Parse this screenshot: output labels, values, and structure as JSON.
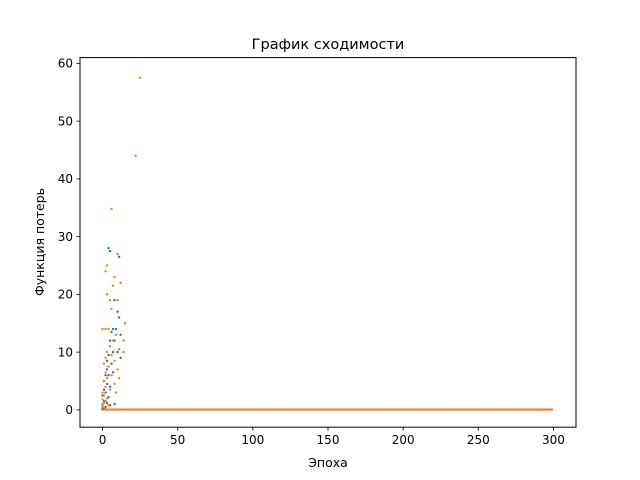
{
  "chart_data": {
    "type": "scatter",
    "title": "График сходимости",
    "xlabel": "Эпоха",
    "ylabel": "Функция потерь",
    "xlim": [
      -15,
      315
    ],
    "ylim": [
      -3,
      61
    ],
    "xticks": [
      0,
      50,
      100,
      150,
      200,
      250,
      300
    ],
    "yticks": [
      0,
      10,
      20,
      30,
      40,
      50,
      60
    ],
    "grid": false,
    "legend": "none",
    "series": [
      {
        "color": "#1f77b4",
        "points": [
          [
            4,
            28
          ],
          [
            5,
            27.5
          ],
          [
            11,
            26.5
          ],
          [
            8,
            19
          ],
          [
            10,
            17
          ],
          [
            11,
            16
          ],
          [
            12,
            13
          ],
          [
            9,
            14
          ],
          [
            7,
            14
          ],
          [
            6,
            13.5
          ],
          [
            5,
            12
          ],
          [
            8,
            12
          ],
          [
            10,
            10
          ],
          [
            7,
            10
          ],
          [
            4,
            9.5
          ],
          [
            3,
            8.5
          ],
          [
            6,
            8
          ],
          [
            12,
            9
          ],
          [
            3,
            7
          ],
          [
            2,
            6
          ],
          [
            4,
            6
          ],
          [
            7,
            6.5
          ],
          [
            1,
            5
          ],
          [
            3,
            4.5
          ],
          [
            5,
            4
          ],
          [
            1,
            3.5
          ],
          [
            2,
            3
          ],
          [
            0,
            2.5
          ],
          [
            4,
            2.2
          ],
          [
            1,
            1.5
          ],
          [
            0,
            1
          ],
          [
            3,
            1.2
          ],
          [
            0,
            0.6
          ],
          [
            2,
            0.5
          ],
          [
            1,
            0.3
          ],
          [
            0,
            0.2
          ],
          [
            5,
            0.8
          ],
          [
            8,
            1
          ]
        ]
      },
      {
        "color": "#ff7f0e",
        "points": [
          [
            25,
            57.5
          ],
          [
            22,
            44
          ],
          [
            6,
            34.8
          ],
          [
            10,
            27
          ],
          [
            3,
            25
          ],
          [
            2,
            24
          ],
          [
            8,
            23
          ],
          [
            12,
            22
          ],
          [
            7,
            21.5
          ],
          [
            3,
            20
          ],
          [
            5,
            19
          ],
          [
            10,
            19
          ],
          [
            6,
            17.5
          ],
          [
            15,
            15
          ],
          [
            4,
            14
          ],
          [
            0,
            14
          ],
          [
            2,
            14
          ],
          [
            9,
            13
          ],
          [
            14,
            12
          ],
          [
            7,
            12
          ],
          [
            5,
            11
          ],
          [
            11,
            10.5
          ],
          [
            3,
            10
          ],
          [
            14,
            10
          ],
          [
            6,
            9.5
          ],
          [
            2,
            9
          ],
          [
            8,
            8.5
          ],
          [
            1,
            8
          ],
          [
            4,
            7.5
          ],
          [
            10,
            7
          ],
          [
            2,
            6.5
          ],
          [
            6,
            6
          ],
          [
            3,
            5.5
          ],
          [
            11,
            5.5
          ],
          [
            1,
            5
          ],
          [
            8,
            4.5
          ],
          [
            2,
            4
          ],
          [
            5,
            3.5
          ],
          [
            0,
            3
          ],
          [
            9,
            3
          ],
          [
            1,
            2.5
          ],
          [
            3,
            2
          ],
          [
            0,
            1.8
          ],
          [
            2,
            1.5
          ],
          [
            1,
            1.2
          ],
          [
            0,
            1
          ],
          [
            4,
            0.8
          ],
          [
            0,
            0.5
          ],
          [
            1,
            0.4
          ]
        ]
      }
    ],
    "baseline": {
      "from_epoch": 0,
      "to_epoch": 299,
      "value": 0.05,
      "colors": [
        "#1f77b4",
        "#ff7f0e"
      ]
    }
  }
}
